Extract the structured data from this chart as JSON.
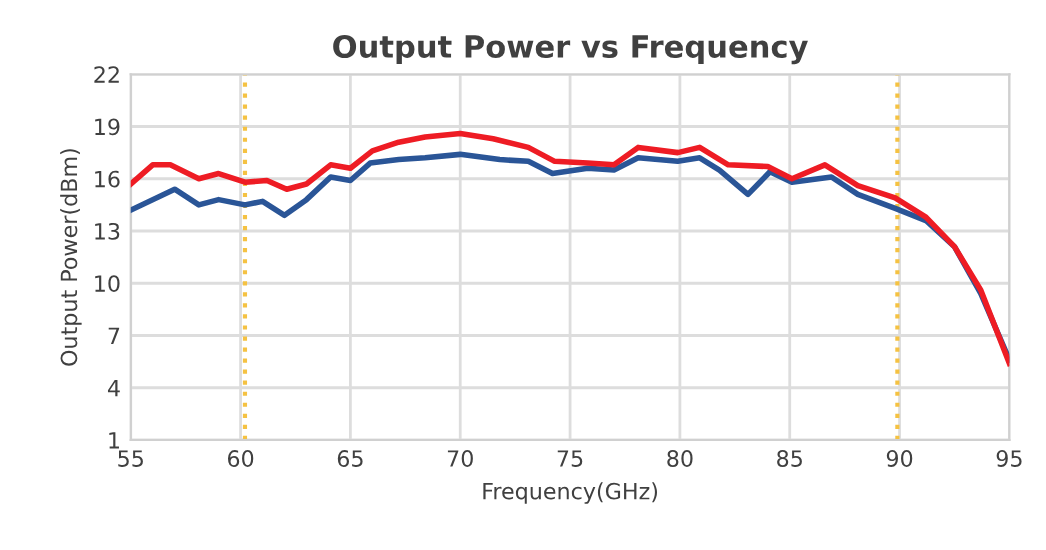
{
  "chart_data": {
    "type": "line",
    "title": "Output Power vs Frequency",
    "xlabel": "Frequency(GHz)",
    "ylabel": "Output Power(dBm)",
    "xlim": [
      55,
      95
    ],
    "xticks": [
      55,
      60,
      65,
      70,
      75,
      80,
      85,
      90,
      95
    ],
    "ylim": [
      1,
      22
    ],
    "yticks": [
      1,
      4,
      7,
      10,
      13,
      16,
      19,
      22
    ],
    "grid": true,
    "line_style": "solid",
    "ref_lines": [
      {
        "axis": "x",
        "value": 60.2,
        "color": "#f5c242",
        "line_style": "dotted"
      },
      {
        "axis": "x",
        "value": 89.9,
        "color": "#f5c242",
        "line_style": "dotted"
      }
    ],
    "series": [
      {
        "color": "#2a5597",
        "x": [
          55,
          57,
          58.1,
          59,
          60.2,
          61,
          62,
          63,
          64.1,
          65,
          65.9,
          67.2,
          68.4,
          70,
          71.8,
          73.1,
          74.2,
          75.8,
          77,
          78.1,
          79.9,
          80.9,
          81.8,
          83.1,
          84.1,
          85.1,
          86.9,
          88.1,
          89.8,
          91.2,
          92.5,
          93.7,
          95
        ],
        "values": [
          14.2,
          15.4,
          14.5,
          14.8,
          14.5,
          14.7,
          13.9,
          14.8,
          16.1,
          15.9,
          16.9,
          17.1,
          17.2,
          17.4,
          17.1,
          17.0,
          16.3,
          16.6,
          16.5,
          17.2,
          17.0,
          17.2,
          16.5,
          15.1,
          16.4,
          15.8,
          16.1,
          15.1,
          14.3,
          13.6,
          12.1,
          9.4,
          5.6
        ]
      },
      {
        "color": "#ee1c24",
        "x": [
          55,
          56,
          56.8,
          58.1,
          59,
          60.2,
          61.2,
          62.1,
          63,
          64.1,
          65,
          66,
          67.2,
          68.4,
          70,
          71.5,
          73.1,
          74.3,
          75.8,
          77,
          78.1,
          79.9,
          80.9,
          82.2,
          84,
          85.1,
          86.6,
          88.1,
          89.8,
          91.2,
          92.5,
          93.7,
          95
        ],
        "values": [
          15.7,
          16.8,
          16.8,
          16.0,
          16.3,
          15.8,
          15.9,
          15.4,
          15.7,
          16.8,
          16.6,
          17.6,
          18.1,
          18.4,
          18.6,
          18.3,
          17.8,
          17.0,
          16.9,
          16.8,
          17.8,
          17.5,
          17.8,
          16.8,
          16.7,
          16.0,
          16.8,
          15.6,
          14.9,
          13.8,
          12.1,
          9.6,
          5.4
        ]
      }
    ]
  }
}
